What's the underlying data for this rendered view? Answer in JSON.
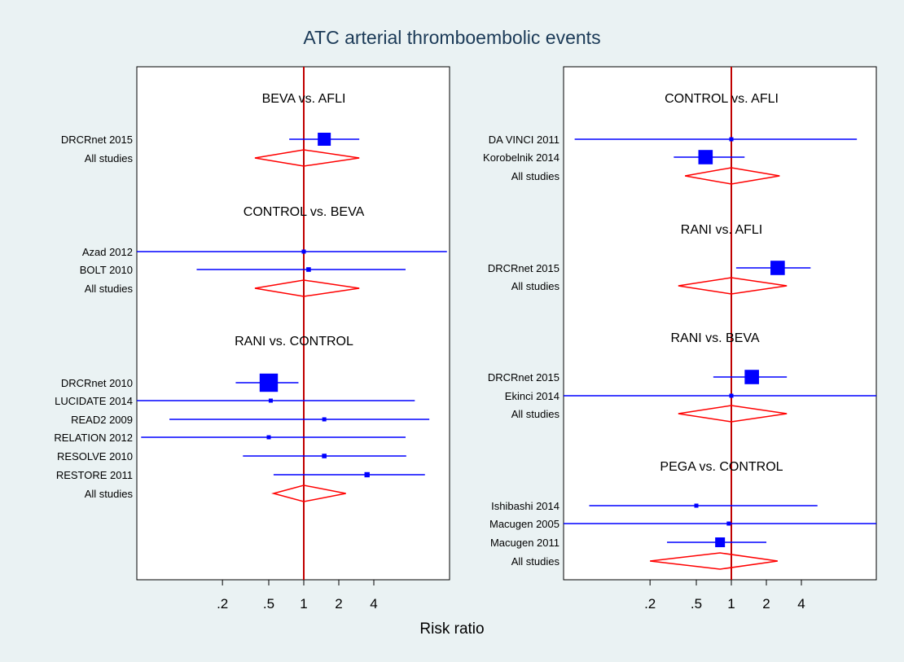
{
  "title": "ATC arterial thromboembolic events",
  "xlabel": "Risk ratio",
  "colors": {
    "background": "#eaf2f3",
    "panel": "#ffffff",
    "title": "#1b3a57",
    "study": "#0000ff",
    "pooled": "#ff0000",
    "reference_line": "#c00000"
  },
  "chart_data": [
    {
      "type": "forest",
      "panel": "left",
      "xscale": "log",
      "xticks": [
        0.2,
        0.5,
        1,
        2,
        4
      ],
      "xtick_labels": [
        ".2",
        ".5",
        "1",
        "2",
        "4"
      ],
      "reference_line": 1,
      "groups": [
        {
          "title": "BEVA vs. AFLI",
          "studies": [
            {
              "label": "DRCRnet 2015",
              "rr": 1.5,
              "lo": 0.75,
              "hi": 3.0,
              "weight": 1.0
            }
          ],
          "pooled": {
            "label": "All studies",
            "rr": 1.0,
            "lo": 0.38,
            "hi": 3.0
          }
        },
        {
          "title": "CONTROL vs. BEVA",
          "studies": [
            {
              "label": "Azad 2012",
              "rr": 1.0,
              "lo": 0.035,
              "hi": 17.0,
              "weight": 0.15
            },
            {
              "label": "BOLT 2010",
              "rr": 1.1,
              "lo": 0.12,
              "hi": 7.5,
              "weight": 0.35
            }
          ],
          "pooled": {
            "label": "All studies",
            "rr": 1.0,
            "lo": 0.38,
            "hi": 3.0
          }
        },
        {
          "title": "RANI vs. CONTROL",
          "studies": [
            {
              "label": "DRCRnet 2010",
              "rr": 0.5,
              "lo": 0.26,
              "hi": 0.9,
              "weight": 1.4
            },
            {
              "label": "LUCIDATE 2014",
              "rr": 0.52,
              "lo": 0.013,
              "hi": 9.0,
              "weight": 0.12
            },
            {
              "label": "READ2 2009",
              "rr": 1.5,
              "lo": 0.07,
              "hi": 12.0,
              "weight": 0.22
            },
            {
              "label": "RELATION 2012",
              "rr": 0.5,
              "lo": 0.04,
              "hi": 7.5,
              "weight": 0.25
            },
            {
              "label": "RESOLVE 2010",
              "rr": 1.5,
              "lo": 0.3,
              "hi": 7.6,
              "weight": 0.35
            },
            {
              "label": "RESTORE 2011",
              "rr": 3.5,
              "lo": 0.55,
              "hi": 11.0,
              "weight": 0.4
            }
          ],
          "pooled": {
            "label": "All studies",
            "rr": 1.0,
            "lo": 0.55,
            "hi": 2.3
          }
        }
      ]
    },
    {
      "type": "forest",
      "panel": "right",
      "xscale": "log",
      "xticks": [
        0.2,
        0.5,
        1,
        2,
        4
      ],
      "xtick_labels": [
        ".2",
        ".5",
        "1",
        "2",
        "4"
      ],
      "reference_line": 1,
      "groups": [
        {
          "title": "CONTROL vs. AFLI",
          "studies": [
            {
              "label": "DA VINCI 2011",
              "rr": 1.0,
              "lo": 0.045,
              "hi": 12.0,
              "weight": 0.3
            },
            {
              "label": "Korobelnik 2014",
              "rr": 0.6,
              "lo": 0.32,
              "hi": 1.3,
              "weight": 1.1
            }
          ],
          "pooled": {
            "label": "All studies",
            "rr": 1.0,
            "lo": 0.4,
            "hi": 2.6
          }
        },
        {
          "title": "RANI vs. AFLI",
          "studies": [
            {
              "label": "DRCRnet 2015",
              "rr": 2.5,
              "lo": 1.1,
              "hi": 4.8,
              "weight": 1.1
            }
          ],
          "pooled": {
            "label": "All studies",
            "rr": 1.0,
            "lo": 0.35,
            "hi": 3.0
          }
        },
        {
          "title": "RANI vs. BEVA",
          "studies": [
            {
              "label": "DRCRnet 2015",
              "rr": 1.5,
              "lo": 0.7,
              "hi": 3.0,
              "weight": 1.1
            },
            {
              "label": "Ekinci 2014",
              "rr": 1.0,
              "lo": 0.023,
              "hi": 35.0,
              "weight": 0.12
            }
          ],
          "pooled": {
            "label": "All studies",
            "rr": 1.0,
            "lo": 0.35,
            "hi": 3.0
          }
        },
        {
          "title": "PEGA vs. CONTROL",
          "studies": [
            {
              "label": "Ishibashi 2014",
              "rr": 0.5,
              "lo": 0.06,
              "hi": 5.5,
              "weight": 0.3
            },
            {
              "label": "Macugen 2005",
              "rr": 0.95,
              "lo": 0.022,
              "hi": 34.0,
              "weight": 0.12
            },
            {
              "label": "Macugen 2011",
              "rr": 0.8,
              "lo": 0.28,
              "hi": 2.0,
              "weight": 0.75
            }
          ],
          "pooled": {
            "label": "All studies",
            "rr": 0.8,
            "lo": 0.2,
            "hi": 2.5
          }
        }
      ]
    }
  ]
}
